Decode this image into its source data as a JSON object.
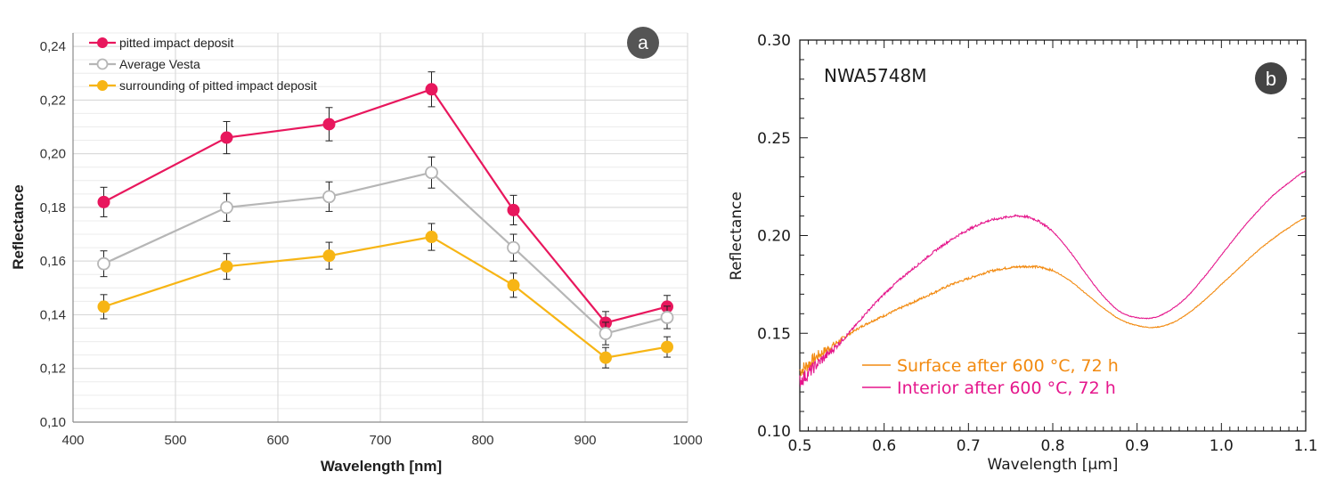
{
  "chart_data": [
    {
      "type": "line",
      "panel_badge": "a",
      "xlabel": "Wavelength [nm]",
      "ylabel": "Reflectance",
      "xlim": [
        400,
        1000
      ],
      "ylim": [
        0.1,
        0.245
      ],
      "x_ticks": [
        400,
        500,
        600,
        700,
        800,
        900,
        1000
      ],
      "x_tick_labels": [
        "400",
        "500",
        "600",
        "700",
        "800",
        "900",
        "1000"
      ],
      "y_ticks": [
        0.1,
        0.12,
        0.14,
        0.16,
        0.18,
        0.2,
        0.22,
        0.24
      ],
      "y_tick_labels": [
        "0,10",
        "0,12",
        "0,14",
        "0,16",
        "0,18",
        "0,20",
        "0,22",
        "0,24"
      ],
      "grid": true,
      "legend": "top-left",
      "x": [
        430,
        550,
        650,
        750,
        830,
        920,
        980
      ],
      "series": [
        {
          "name": "pitted impact deposit",
          "color": "#e8175d",
          "marker": "filled-circle",
          "values": [
            0.182,
            0.206,
            0.211,
            0.224,
            0.179,
            0.137,
            0.143
          ],
          "errors": [
            0.0055,
            0.006,
            0.0062,
            0.0065,
            0.0055,
            0.0042,
            0.0042
          ]
        },
        {
          "name": "Average Vesta",
          "color": "#b6b6b6",
          "marker": "open-circle",
          "values": [
            0.159,
            0.18,
            0.184,
            0.193,
            0.165,
            0.133,
            0.139
          ],
          "errors": [
            0.0048,
            0.0052,
            0.0055,
            0.0058,
            0.005,
            0.0042,
            0.0042
          ]
        },
        {
          "name": "surrounding of pitted impact deposit",
          "color": "#f7b515",
          "marker": "filled-circle",
          "values": [
            0.143,
            0.158,
            0.162,
            0.169,
            0.151,
            0.124,
            0.128
          ],
          "errors": [
            0.0045,
            0.0048,
            0.005,
            0.005,
            0.0045,
            0.0038,
            0.0038
          ]
        }
      ]
    },
    {
      "type": "line",
      "panel_badge": "b",
      "annotation": "NWA5748M",
      "xlabel": "Wavelength [µm]",
      "ylabel": "Reflectance",
      "xlim": [
        0.5,
        1.1
      ],
      "ylim": [
        0.1,
        0.3
      ],
      "x_ticks": [
        0.5,
        0.6,
        0.7,
        0.8,
        0.9,
        1.0,
        1.1
      ],
      "x_tick_labels": [
        "0.5",
        "0.6",
        "0.7",
        "0.8",
        "0.9",
        "1.0",
        "1.1"
      ],
      "y_ticks": [
        0.1,
        0.15,
        0.2,
        0.25,
        0.3
      ],
      "y_tick_labels": [
        "0.10",
        "0.15",
        "0.20",
        "0.25",
        "0.30"
      ],
      "grid": false,
      "legend": "bottom-center",
      "series": [
        {
          "name": "Surface after 600 °C, 72 h",
          "color": "#f28a10",
          "x": [
            0.5,
            0.52,
            0.54,
            0.56,
            0.58,
            0.6,
            0.62,
            0.64,
            0.66,
            0.68,
            0.7,
            0.72,
            0.74,
            0.76,
            0.78,
            0.8,
            0.82,
            0.84,
            0.86,
            0.88,
            0.9,
            0.92,
            0.94,
            0.96,
            0.98,
            1.0,
            1.02,
            1.04,
            1.06,
            1.08,
            1.1
          ],
          "values": [
            0.131,
            0.138,
            0.144,
            0.15,
            0.155,
            0.159,
            0.163,
            0.167,
            0.171,
            0.175,
            0.178,
            0.181,
            0.183,
            0.184,
            0.184,
            0.182,
            0.177,
            0.17,
            0.163,
            0.157,
            0.154,
            0.153,
            0.155,
            0.16,
            0.167,
            0.175,
            0.183,
            0.191,
            0.198,
            0.204,
            0.209
          ]
        },
        {
          "name": "Interior after 600 °C, 72 h",
          "color": "#e5178c",
          "x": [
            0.5,
            0.52,
            0.54,
            0.56,
            0.58,
            0.6,
            0.62,
            0.64,
            0.66,
            0.68,
            0.7,
            0.72,
            0.74,
            0.76,
            0.78,
            0.8,
            0.82,
            0.84,
            0.86,
            0.88,
            0.9,
            0.92,
            0.94,
            0.96,
            0.98,
            1.0,
            1.02,
            1.04,
            1.06,
            1.08,
            1.1
          ],
          "values": [
            0.126,
            0.134,
            0.142,
            0.151,
            0.161,
            0.17,
            0.178,
            0.185,
            0.192,
            0.198,
            0.203,
            0.207,
            0.209,
            0.21,
            0.208,
            0.202,
            0.192,
            0.18,
            0.169,
            0.161,
            0.158,
            0.158,
            0.162,
            0.169,
            0.179,
            0.19,
            0.201,
            0.211,
            0.22,
            0.227,
            0.233
          ]
        }
      ]
    }
  ]
}
